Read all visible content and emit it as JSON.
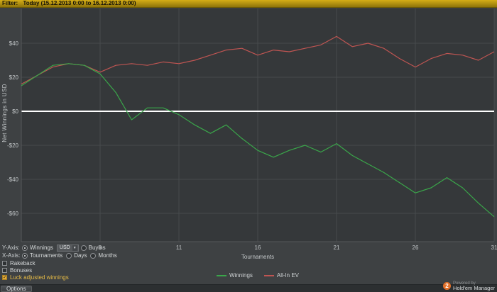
{
  "filter_bar": {
    "label": "Filter:",
    "value": "Today (15.12.2013 0:00 to 16.12.2013 0:00)"
  },
  "chart_data": {
    "type": "line",
    "title": "",
    "xlabel": "Tournaments",
    "ylabel": "Net Winnings in USD",
    "xlim": [
      1,
      31
    ],
    "ylim": [
      -76,
      60
    ],
    "x_ticks": [
      6,
      11,
      16,
      21,
      26,
      31
    ],
    "y_ticks": [
      40,
      20,
      0,
      -20,
      -40,
      -60
    ],
    "y_tick_labels": [
      "$40",
      "$20",
      "$0",
      "-$20",
      "-$40",
      "-$60"
    ],
    "grid": true,
    "zero_line": true,
    "legend_position": "bottom-center",
    "series": [
      {
        "name": "Winnings",
        "color": "#3aa64a",
        "x_start": 1,
        "values": [
          15,
          21,
          27,
          28,
          27,
          22,
          11,
          -5,
          2,
          2,
          -2,
          -8,
          -13,
          -8,
          -16,
          -23,
          -27,
          -23,
          -20,
          -24,
          -19,
          -26,
          -31,
          -36,
          -42,
          -48,
          -45,
          -39,
          -45,
          -54,
          -62
        ]
      },
      {
        "name": "All-In EV",
        "color": "#bf5552",
        "x_start": 1,
        "values": [
          16,
          21,
          26,
          28,
          27,
          23,
          27,
          28,
          27,
          29,
          28,
          30,
          33,
          36,
          37,
          33,
          36,
          35,
          37,
          39,
          44,
          38,
          40,
          37,
          31,
          26,
          31,
          34,
          33,
          30,
          35
        ]
      }
    ]
  },
  "controls": {
    "y_axis": {
      "label": "Y-Axis:",
      "unit": "USD",
      "options": [
        {
          "label": "Winnings",
          "selected": true
        },
        {
          "label": "Buyins",
          "selected": false
        }
      ]
    },
    "x_axis": {
      "label": "X-Axis:",
      "options": [
        {
          "label": "Tournaments",
          "selected": true
        },
        {
          "label": "Days",
          "selected": false
        },
        {
          "label": "Months",
          "selected": false
        }
      ]
    },
    "checkboxes": [
      {
        "label": "Rakeback",
        "checked": false
      },
      {
        "label": "Bonuses",
        "checked": false
      },
      {
        "label": "Luck adjusted winnings",
        "checked": true
      }
    ]
  },
  "footer": {
    "options_button": "Options",
    "powered_by": "Powered by",
    "brand": "Hold'em Manager",
    "logo_text": "2"
  },
  "icons": {
    "chevron_down": "▼"
  },
  "colors": {
    "window_bg": "#3e4143",
    "plot_bg": "#35383a",
    "grid": "#474a4c",
    "axis_line": "#55585a",
    "zero_line": "#ffffff",
    "tick_text": "#c3c7c9",
    "winnings_green": "#3aa64a",
    "ev_red": "#bf5552",
    "filter_bar_gold": "#c3a013",
    "checked_yellow": "#e2aa3c",
    "logo_orange": "#e2702a"
  }
}
